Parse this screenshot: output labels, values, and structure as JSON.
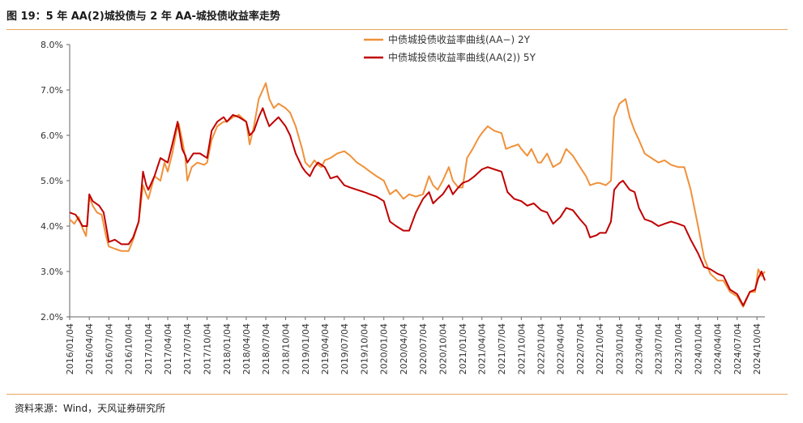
{
  "header": {
    "title": "图 19：5 年 AA(2)城投债与 2 年 AA-城投债收益率走势"
  },
  "footer": {
    "source": "资料来源：Wind，天风证券研究所"
  },
  "chart_data": {
    "type": "line",
    "title": "",
    "xlabel": "",
    "ylabel": "",
    "ylim": [
      2.0,
      8.0
    ],
    "y_ticks": [
      "2.0%",
      "3.0%",
      "4.0%",
      "5.0%",
      "6.0%",
      "7.0%",
      "8.0%"
    ],
    "x_tick_labels": [
      "2016/01/04",
      "2016/04/04",
      "2016/07/04",
      "2016/10/04",
      "2017/01/04",
      "2017/04/04",
      "2017/07/04",
      "2017/10/04",
      "2018/01/04",
      "2018/04/04",
      "2018/07/04",
      "2018/10/04",
      "2019/01/04",
      "2019/04/04",
      "2019/07/04",
      "2019/10/04",
      "2020/01/04",
      "2020/04/04",
      "2020/07/04",
      "2020/10/04",
      "2021/01/04",
      "2021/04/04",
      "2021/07/04",
      "2021/10/04",
      "2022/01/04",
      "2022/04/04",
      "2022/07/04",
      "2022/10/04",
      "2023/01/04",
      "2023/04/04",
      "2023/07/04",
      "2023/10/04",
      "2024/01/04",
      "2024/04/04",
      "2024/07/04",
      "2024/10/04"
    ],
    "legend_position": "top",
    "grid": false,
    "series": [
      {
        "name": "中债城投债收益率曲线(AA−)  2Y",
        "color": "#F0913A",
        "points": [
          [
            "2016/01/04",
            4.15
          ],
          [
            "2016/01/25",
            4.05
          ],
          [
            "2016/02/15",
            4.2
          ],
          [
            "2016/03/04",
            3.95
          ],
          [
            "2016/03/20",
            3.78
          ],
          [
            "2016/04/04",
            4.65
          ],
          [
            "2016/04/20",
            4.45
          ],
          [
            "2016/05/10",
            4.3
          ],
          [
            "2016/06/01",
            4.25
          ],
          [
            "2016/06/20",
            3.8
          ],
          [
            "2016/07/04",
            3.55
          ],
          [
            "2016/08/01",
            3.5
          ],
          [
            "2016/09/01",
            3.45
          ],
          [
            "2016/10/04",
            3.45
          ],
          [
            "2016/10/25",
            3.7
          ],
          [
            "2016/11/20",
            4.1
          ],
          [
            "2016/12/10",
            4.9
          ],
          [
            "2016/12/25",
            4.7
          ],
          [
            "2017/01/04",
            4.6
          ],
          [
            "2017/02/01",
            5.1
          ],
          [
            "2017/03/01",
            5.0
          ],
          [
            "2017/03/20",
            5.4
          ],
          [
            "2017/04/04",
            5.2
          ],
          [
            "2017/04/25",
            5.6
          ],
          [
            "2017/05/15",
            6.1
          ],
          [
            "2017/05/25",
            6.25
          ],
          [
            "2017/06/10",
            5.9
          ],
          [
            "2017/06/25",
            5.5
          ],
          [
            "2017/07/04",
            5.0
          ],
          [
            "2017/07/25",
            5.3
          ],
          [
            "2017/08/20",
            5.4
          ],
          [
            "2017/09/20",
            5.35
          ],
          [
            "2017/10/04",
            5.4
          ],
          [
            "2017/10/25",
            5.9
          ],
          [
            "2017/11/20",
            6.2
          ],
          [
            "2017/12/20",
            6.3
          ],
          [
            "2018/01/04",
            6.3
          ],
          [
            "2018/02/01",
            6.4
          ],
          [
            "2018/03/01",
            6.45
          ],
          [
            "2018/04/04",
            6.3
          ],
          [
            "2018/04/20",
            5.8
          ],
          [
            "2018/05/10",
            6.2
          ],
          [
            "2018/06/01",
            6.8
          ],
          [
            "2018/06/20",
            7.0
          ],
          [
            "2018/07/04",
            7.15
          ],
          [
            "2018/07/20",
            6.8
          ],
          [
            "2018/08/10",
            6.6
          ],
          [
            "2018/09/01",
            6.7
          ],
          [
            "2018/10/04",
            6.6
          ],
          [
            "2018/10/25",
            6.5
          ],
          [
            "2018/11/20",
            6.2
          ],
          [
            "2018/12/20",
            5.7
          ],
          [
            "2019/01/04",
            5.4
          ],
          [
            "2019/01/25",
            5.3
          ],
          [
            "2019/02/15",
            5.45
          ],
          [
            "2019/03/04",
            5.35
          ],
          [
            "2019/03/20",
            5.3
          ],
          [
            "2019/04/04",
            5.45
          ],
          [
            "2019/05/01",
            5.5
          ],
          [
            "2019/06/01",
            5.6
          ],
          [
            "2019/07/04",
            5.65
          ],
          [
            "2019/08/01",
            5.55
          ],
          [
            "2019/09/01",
            5.4
          ],
          [
            "2019/10/04",
            5.3
          ],
          [
            "2019/11/01",
            5.2
          ],
          [
            "2019/12/01",
            5.1
          ],
          [
            "2020/01/04",
            5.0
          ],
          [
            "2020/02/01",
            4.7
          ],
          [
            "2020/03/01",
            4.8
          ],
          [
            "2020/04/04",
            4.6
          ],
          [
            "2020/05/01",
            4.7
          ],
          [
            "2020/06/01",
            4.65
          ],
          [
            "2020/07/04",
            4.7
          ],
          [
            "2020/08/01",
            5.1
          ],
          [
            "2020/08/20",
            4.9
          ],
          [
            "2020/09/10",
            4.8
          ],
          [
            "2020/10/04",
            5.0
          ],
          [
            "2020/11/01",
            5.3
          ],
          [
            "2020/11/20",
            5.0
          ],
          [
            "2020/12/15",
            4.85
          ],
          [
            "2021/01/04",
            4.85
          ],
          [
            "2021/01/25",
            5.5
          ],
          [
            "2021/02/20",
            5.7
          ],
          [
            "2021/03/20",
            5.95
          ],
          [
            "2021/04/04",
            6.05
          ],
          [
            "2021/05/01",
            6.2
          ],
          [
            "2021/06/01",
            6.1
          ],
          [
            "2021/07/04",
            6.05
          ],
          [
            "2021/07/25",
            5.7
          ],
          [
            "2021/08/20",
            5.75
          ],
          [
            "2021/09/20",
            5.8
          ],
          [
            "2021/10/04",
            5.7
          ],
          [
            "2021/11/01",
            5.55
          ],
          [
            "2021/11/20",
            5.7
          ],
          [
            "2021/12/20",
            5.4
          ],
          [
            "2022/01/04",
            5.4
          ],
          [
            "2022/02/01",
            5.6
          ],
          [
            "2022/03/01",
            5.3
          ],
          [
            "2022/04/04",
            5.4
          ],
          [
            "2022/05/01",
            5.7
          ],
          [
            "2022/06/01",
            5.55
          ],
          [
            "2022/07/04",
            5.3
          ],
          [
            "2022/08/01",
            5.1
          ],
          [
            "2022/08/20",
            4.9
          ],
          [
            "2022/09/20",
            4.95
          ],
          [
            "2022/10/04",
            4.95
          ],
          [
            "2022/11/01",
            4.9
          ],
          [
            "2022/11/25",
            5.0
          ],
          [
            "2022/12/10",
            6.4
          ],
          [
            "2023/01/04",
            6.7
          ],
          [
            "2023/02/01",
            6.8
          ],
          [
            "2023/02/20",
            6.4
          ],
          [
            "2023/03/15",
            6.1
          ],
          [
            "2023/04/04",
            5.9
          ],
          [
            "2023/05/01",
            5.6
          ],
          [
            "2023/06/01",
            5.5
          ],
          [
            "2023/07/04",
            5.4
          ],
          [
            "2023/08/01",
            5.45
          ],
          [
            "2023/09/01",
            5.35
          ],
          [
            "2023/10/04",
            5.3
          ],
          [
            "2023/11/01",
            5.3
          ],
          [
            "2023/12/01",
            4.8
          ],
          [
            "2024/01/04",
            4.0
          ],
          [
            "2024/02/01",
            3.3
          ],
          [
            "2024/03/01",
            2.95
          ],
          [
            "2024/04/04",
            2.8
          ],
          [
            "2024/05/01",
            2.8
          ],
          [
            "2024/06/01",
            2.55
          ],
          [
            "2024/07/04",
            2.45
          ],
          [
            "2024/08/01",
            2.22
          ],
          [
            "2024/09/01",
            2.55
          ],
          [
            "2024/09/25",
            2.55
          ],
          [
            "2024/10/10",
            3.05
          ],
          [
            "2024/10/25",
            2.9
          ],
          [
            "2024/11/10",
            3.0
          ]
        ]
      },
      {
        "name": "中债城投债收益率曲线(AA(2))  5Y",
        "color": "#C00000",
        "points": [
          [
            "2016/01/04",
            4.3
          ],
          [
            "2016/02/01",
            4.25
          ],
          [
            "2016/03/04",
            4.0
          ],
          [
            "2016/03/25",
            4.0
          ],
          [
            "2016/04/04",
            4.7
          ],
          [
            "2016/04/20",
            4.55
          ],
          [
            "2016/05/20",
            4.45
          ],
          [
            "2016/06/10",
            4.3
          ],
          [
            "2016/06/25",
            3.9
          ],
          [
            "2016/07/04",
            3.65
          ],
          [
            "2016/08/01",
            3.7
          ],
          [
            "2016/09/01",
            3.6
          ],
          [
            "2016/10/04",
            3.6
          ],
          [
            "2016/10/25",
            3.75
          ],
          [
            "2016/11/20",
            4.1
          ],
          [
            "2016/12/10",
            5.2
          ],
          [
            "2016/12/25",
            4.9
          ],
          [
            "2017/01/04",
            4.8
          ],
          [
            "2017/02/01",
            5.1
          ],
          [
            "2017/03/01",
            5.5
          ],
          [
            "2017/04/04",
            5.4
          ],
          [
            "2017/04/25",
            5.8
          ],
          [
            "2017/05/20",
            6.3
          ],
          [
            "2017/06/10",
            5.7
          ],
          [
            "2017/06/25",
            5.55
          ],
          [
            "2017/07/04",
            5.4
          ],
          [
            "2017/08/01",
            5.6
          ],
          [
            "2017/09/01",
            5.6
          ],
          [
            "2017/10/04",
            5.5
          ],
          [
            "2017/10/25",
            6.1
          ],
          [
            "2017/11/20",
            6.3
          ],
          [
            "2017/12/20",
            6.4
          ],
          [
            "2018/01/04",
            6.3
          ],
          [
            "2018/02/01",
            6.45
          ],
          [
            "2018/03/01",
            6.4
          ],
          [
            "2018/04/04",
            6.3
          ],
          [
            "2018/04/20",
            6.0
          ],
          [
            "2018/05/10",
            6.1
          ],
          [
            "2018/06/01",
            6.4
          ],
          [
            "2018/06/20",
            6.6
          ],
          [
            "2018/07/04",
            6.4
          ],
          [
            "2018/07/20",
            6.2
          ],
          [
            "2018/08/10",
            6.3
          ],
          [
            "2018/09/01",
            6.4
          ],
          [
            "2018/10/04",
            6.2
          ],
          [
            "2018/10/25",
            6.0
          ],
          [
            "2018/11/20",
            5.6
          ],
          [
            "2018/12/20",
            5.3
          ],
          [
            "2019/01/04",
            5.2
          ],
          [
            "2019/01/25",
            5.1
          ],
          [
            "2019/02/15",
            5.3
          ],
          [
            "2019/03/04",
            5.4
          ],
          [
            "2019/04/04",
            5.3
          ],
          [
            "2019/05/01",
            5.05
          ],
          [
            "2019/06/01",
            5.1
          ],
          [
            "2019/07/04",
            4.9
          ],
          [
            "2019/08/01",
            4.85
          ],
          [
            "2019/09/01",
            4.8
          ],
          [
            "2019/10/04",
            4.75
          ],
          [
            "2019/11/01",
            4.7
          ],
          [
            "2019/12/01",
            4.65
          ],
          [
            "2020/01/04",
            4.55
          ],
          [
            "2020/02/01",
            4.1
          ],
          [
            "2020/03/01",
            4.0
          ],
          [
            "2020/04/04",
            3.9
          ],
          [
            "2020/05/01",
            3.9
          ],
          [
            "2020/06/01",
            4.3
          ],
          [
            "2020/07/04",
            4.6
          ],
          [
            "2020/08/01",
            4.75
          ],
          [
            "2020/08/20",
            4.5
          ],
          [
            "2020/09/10",
            4.6
          ],
          [
            "2020/10/04",
            4.7
          ],
          [
            "2020/11/01",
            4.9
          ],
          [
            "2020/11/20",
            4.7
          ],
          [
            "2020/12/15",
            4.85
          ],
          [
            "2021/01/04",
            4.95
          ],
          [
            "2021/02/01",
            5.0
          ],
          [
            "2021/03/01",
            5.1
          ],
          [
            "2021/04/04",
            5.25
          ],
          [
            "2021/05/01",
            5.3
          ],
          [
            "2021/06/01",
            5.25
          ],
          [
            "2021/07/04",
            5.2
          ],
          [
            "2021/08/01",
            4.75
          ],
          [
            "2021/09/01",
            4.6
          ],
          [
            "2021/10/04",
            4.55
          ],
          [
            "2021/11/01",
            4.45
          ],
          [
            "2021/12/01",
            4.5
          ],
          [
            "2022/01/04",
            4.35
          ],
          [
            "2022/02/01",
            4.3
          ],
          [
            "2022/03/01",
            4.05
          ],
          [
            "2022/04/04",
            4.2
          ],
          [
            "2022/05/01",
            4.4
          ],
          [
            "2022/06/01",
            4.35
          ],
          [
            "2022/07/04",
            4.15
          ],
          [
            "2022/08/01",
            4.0
          ],
          [
            "2022/08/20",
            3.75
          ],
          [
            "2022/09/20",
            3.8
          ],
          [
            "2022/10/04",
            3.85
          ],
          [
            "2022/11/01",
            3.85
          ],
          [
            "2022/11/25",
            4.1
          ],
          [
            "2022/12/10",
            4.8
          ],
          [
            "2023/01/04",
            4.95
          ],
          [
            "2023/01/20",
            5.0
          ],
          [
            "2023/02/20",
            4.8
          ],
          [
            "2023/03/15",
            4.75
          ],
          [
            "2023/04/04",
            4.4
          ],
          [
            "2023/05/01",
            4.15
          ],
          [
            "2023/06/01",
            4.1
          ],
          [
            "2023/07/04",
            4.0
          ],
          [
            "2023/08/01",
            4.05
          ],
          [
            "2023/09/01",
            4.1
          ],
          [
            "2023/10/04",
            4.05
          ],
          [
            "2023/11/01",
            4.0
          ],
          [
            "2023/12/01",
            3.7
          ],
          [
            "2024/01/04",
            3.4
          ],
          [
            "2024/02/01",
            3.1
          ],
          [
            "2024/03/01",
            3.05
          ],
          [
            "2024/04/04",
            2.95
          ],
          [
            "2024/05/01",
            2.9
          ],
          [
            "2024/06/01",
            2.6
          ],
          [
            "2024/07/04",
            2.5
          ],
          [
            "2024/08/01",
            2.25
          ],
          [
            "2024/09/01",
            2.55
          ],
          [
            "2024/09/25",
            2.6
          ],
          [
            "2024/10/10",
            2.85
          ],
          [
            "2024/10/25",
            3.0
          ],
          [
            "2024/11/10",
            2.8
          ]
        ]
      }
    ]
  }
}
